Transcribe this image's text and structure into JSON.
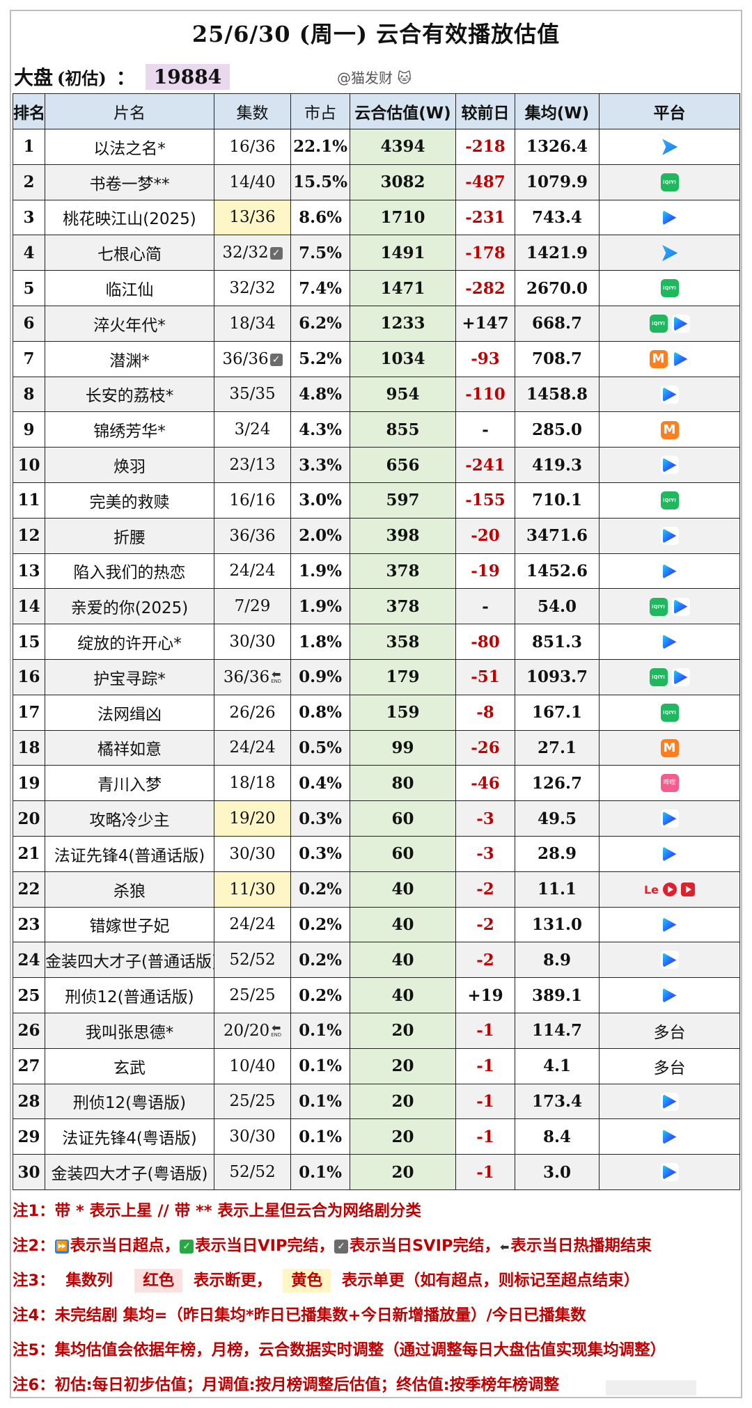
{
  "header": {
    "title": "25/6/30 (周一) 云合有效播放估值",
    "overall_label": "大盘",
    "overall_sub": "(初估)",
    "overall_colon": "：",
    "overall_value": "19884",
    "watermark": "@猫发财"
  },
  "table": {
    "columns": [
      "排名",
      "片名",
      "集数",
      "市占",
      "云合估值(W)",
      "较前日",
      "集均(W)",
      "平台"
    ],
    "rows": [
      {
        "rank": "1",
        "name": "以法之名*",
        "episodes": "16/36",
        "share": "22.1%",
        "estimate": "4394",
        "change": "-218",
        "avg": "1326.4",
        "platforms": [
          "tencent"
        ],
        "episodes_flag": "",
        "episodes_highlight": ""
      },
      {
        "rank": "2",
        "name": "书卷一梦**",
        "episodes": "14/40",
        "share": "15.5%",
        "estimate": "3082",
        "change": "-487",
        "avg": "1079.9",
        "platforms": [
          "iqiyi"
        ],
        "episodes_flag": "",
        "episodes_highlight": ""
      },
      {
        "rank": "3",
        "name": "桃花映江山(2025)",
        "episodes": "13/36",
        "share": "8.6%",
        "estimate": "1710",
        "change": "-231",
        "avg": "743.4",
        "platforms": [
          "youku"
        ],
        "episodes_flag": "",
        "episodes_highlight": "yellow"
      },
      {
        "rank": "4",
        "name": "七根心简",
        "episodes": "32/32",
        "share": "7.5%",
        "estimate": "1491",
        "change": "-178",
        "avg": "1421.9",
        "platforms": [
          "tencent"
        ],
        "episodes_flag": "svip",
        "episodes_highlight": ""
      },
      {
        "rank": "5",
        "name": "临江仙",
        "episodes": "32/32",
        "share": "7.4%",
        "estimate": "1471",
        "change": "-282",
        "avg": "2670.0",
        "platforms": [
          "iqiyi"
        ],
        "episodes_flag": "",
        "episodes_highlight": ""
      },
      {
        "rank": "6",
        "name": "淬火年代*",
        "episodes": "18/34",
        "share": "6.2%",
        "estimate": "1233",
        "change": "+147",
        "avg": "668.7",
        "platforms": [
          "iqiyi",
          "youku"
        ],
        "episodes_flag": "",
        "episodes_highlight": ""
      },
      {
        "rank": "7",
        "name": "潜渊*",
        "episodes": "36/36",
        "share": "5.2%",
        "estimate": "1034",
        "change": "-93",
        "avg": "708.7",
        "platforms": [
          "mgtv",
          "youku"
        ],
        "episodes_flag": "svip",
        "episodes_highlight": ""
      },
      {
        "rank": "8",
        "name": "长安的荔枝*",
        "episodes": "35/35",
        "share": "4.8%",
        "estimate": "954",
        "change": "-110",
        "avg": "1458.8",
        "platforms": [
          "youku"
        ],
        "episodes_flag": "",
        "episodes_highlight": ""
      },
      {
        "rank": "9",
        "name": "锦绣芳华*",
        "episodes": "3/24",
        "share": "4.3%",
        "estimate": "855",
        "change": "-",
        "avg": "285.0",
        "platforms": [
          "mgtv"
        ],
        "episodes_flag": "",
        "episodes_highlight": ""
      },
      {
        "rank": "10",
        "name": "焕羽",
        "episodes": "23/13",
        "share": "3.3%",
        "estimate": "656",
        "change": "-241",
        "avg": "419.3",
        "platforms": [
          "youku"
        ],
        "episodes_flag": "",
        "episodes_highlight": ""
      },
      {
        "rank": "11",
        "name": "完美的救赎",
        "episodes": "16/16",
        "share": "3.0%",
        "estimate": "597",
        "change": "-155",
        "avg": "710.1",
        "platforms": [
          "iqiyi"
        ],
        "episodes_flag": "",
        "episodes_highlight": ""
      },
      {
        "rank": "12",
        "name": "折腰",
        "episodes": "36/36",
        "share": "2.0%",
        "estimate": "398",
        "change": "-20",
        "avg": "3471.6",
        "platforms": [
          "youku"
        ],
        "episodes_flag": "",
        "episodes_highlight": ""
      },
      {
        "rank": "13",
        "name": "陷入我们的热恋",
        "episodes": "24/24",
        "share": "1.9%",
        "estimate": "378",
        "change": "-19",
        "avg": "1452.6",
        "platforms": [
          "youku"
        ],
        "episodes_flag": "",
        "episodes_highlight": ""
      },
      {
        "rank": "14",
        "name": "亲爱的你(2025)",
        "episodes": "7/29",
        "share": "1.9%",
        "estimate": "378",
        "change": "-",
        "avg": "54.0",
        "platforms": [
          "iqiyi",
          "youku"
        ],
        "episodes_flag": "",
        "episodes_highlight": ""
      },
      {
        "rank": "15",
        "name": "绽放的许开心*",
        "episodes": "30/30",
        "share": "1.8%",
        "estimate": "358",
        "change": "-80",
        "avg": "851.3",
        "platforms": [
          "youku"
        ],
        "episodes_flag": "",
        "episodes_highlight": ""
      },
      {
        "rank": "16",
        "name": "护宝寻踪*",
        "episodes": "36/36",
        "share": "0.9%",
        "estimate": "179",
        "change": "-51",
        "avg": "1093.7",
        "platforms": [
          "iqiyi",
          "youku"
        ],
        "episodes_flag": "end",
        "episodes_highlight": ""
      },
      {
        "rank": "17",
        "name": "法网缉凶",
        "episodes": "26/26",
        "share": "0.8%",
        "estimate": "159",
        "change": "-8",
        "avg": "167.1",
        "platforms": [
          "iqiyi"
        ],
        "episodes_flag": "",
        "episodes_highlight": ""
      },
      {
        "rank": "18",
        "name": "橘祥如意",
        "episodes": "24/24",
        "share": "0.5%",
        "estimate": "99",
        "change": "-26",
        "avg": "27.1",
        "platforms": [
          "mgtv"
        ],
        "episodes_flag": "",
        "episodes_highlight": ""
      },
      {
        "rank": "19",
        "name": "青川入梦",
        "episodes": "18/18",
        "share": "0.4%",
        "estimate": "80",
        "change": "-46",
        "avg": "126.7",
        "platforms": [
          "bilibili"
        ],
        "episodes_flag": "",
        "episodes_highlight": ""
      },
      {
        "rank": "20",
        "name": "攻略冷少主",
        "episodes": "19/20",
        "share": "0.3%",
        "estimate": "60",
        "change": "-3",
        "avg": "49.5",
        "platforms": [
          "youku"
        ],
        "episodes_flag": "",
        "episodes_highlight": "yellow"
      },
      {
        "rank": "21",
        "name": "法证先锋4(普通话版)",
        "episodes": "30/30",
        "share": "0.3%",
        "estimate": "60",
        "change": "-3",
        "avg": "28.9",
        "platforms": [
          "youku"
        ],
        "episodes_flag": "",
        "episodes_highlight": ""
      },
      {
        "rank": "22",
        "name": "杀狼",
        "episodes": "11/30",
        "share": "0.2%",
        "estimate": "40",
        "change": "-2",
        "avg": "11.1",
        "platforms": [
          "le",
          "red-circle",
          "red-box"
        ],
        "episodes_flag": "",
        "episodes_highlight": "yellow"
      },
      {
        "rank": "23",
        "name": "错嫁世子妃",
        "episodes": "24/24",
        "share": "0.2%",
        "estimate": "40",
        "change": "-2",
        "avg": "131.0",
        "platforms": [
          "youku"
        ],
        "episodes_flag": "",
        "episodes_highlight": ""
      },
      {
        "rank": "24",
        "name": "金装四大才子(普通话版)",
        "episodes": "52/52",
        "share": "0.2%",
        "estimate": "40",
        "change": "-2",
        "avg": "8.9",
        "platforms": [
          "youku"
        ],
        "episodes_flag": "",
        "episodes_highlight": ""
      },
      {
        "rank": "25",
        "name": "刑侦12(普通话版)",
        "episodes": "25/25",
        "share": "0.2%",
        "estimate": "40",
        "change": "+19",
        "avg": "389.1",
        "platforms": [
          "youku"
        ],
        "episodes_flag": "",
        "episodes_highlight": ""
      },
      {
        "rank": "26",
        "name": "我叫张思德*",
        "episodes": "20/20",
        "share": "0.1%",
        "estimate": "20",
        "change": "-1",
        "avg": "114.7",
        "platforms": [
          "text:多台"
        ],
        "episodes_flag": "end",
        "episodes_highlight": ""
      },
      {
        "rank": "27",
        "name": "玄武",
        "episodes": "10/40",
        "share": "0.1%",
        "estimate": "20",
        "change": "-1",
        "avg": "4.1",
        "platforms": [
          "text:多台"
        ],
        "episodes_flag": "",
        "episodes_highlight": ""
      },
      {
        "rank": "28",
        "name": "刑侦12(粤语版)",
        "episodes": "25/25",
        "share": "0.1%",
        "estimate": "20",
        "change": "-1",
        "avg": "173.4",
        "platforms": [
          "youku"
        ],
        "episodes_flag": "",
        "episodes_highlight": ""
      },
      {
        "rank": "29",
        "name": "法证先锋4(粤语版)",
        "episodes": "30/30",
        "share": "0.1%",
        "estimate": "20",
        "change": "-1",
        "avg": "8.4",
        "platforms": [
          "youku"
        ],
        "episodes_flag": "",
        "episodes_highlight": ""
      },
      {
        "rank": "30",
        "name": "金装四大才子(粤语版)",
        "episodes": "52/52",
        "share": "0.1%",
        "estimate": "20",
        "change": "-1",
        "avg": "3.0",
        "platforms": [
          "youku"
        ],
        "episodes_flag": "",
        "episodes_highlight": ""
      }
    ],
    "colors": {
      "header_bg": "#d6e4f2",
      "estimate_bg": "#e2efd9",
      "negative": "#c00000",
      "highlight_yellow": "#fff6c8",
      "highlight_red": "#fde0e0"
    }
  },
  "notes": {
    "n1": {
      "label": "注1：",
      "text": "带 * 表示上星 // 带 ** 表示上星但云合为网络剧分类"
    },
    "n2": {
      "label": "注2：",
      "p1": "表示当日超点，",
      "p2": "表示当日VIP完结，",
      "p3": "表示当日SVIP完结，",
      "p4": "表示当日热播期结束"
    },
    "n3": {
      "label": "注3：",
      "col": "集数列",
      "red": "红色",
      "red_desc": "表示断更，",
      "yellow": "黄色",
      "yellow_desc": "表示单更（如有超点，则标记至超点结束）"
    },
    "n4": {
      "label": "注4：",
      "text": "未完结剧 集均=（昨日集均*昨日已播集数+今日新增播放量）/今日已播集数"
    },
    "n5": {
      "label": "注5：",
      "text": "集均估值会依据年榜，月榜，云合数据实时调整（通过调整每日大盘估值实现集均调整）"
    },
    "n6": {
      "label": "注6：",
      "text": "初估:每日初步估值；月调值:按月榜调整后估值；终估值:按季榜年榜调整"
    }
  }
}
